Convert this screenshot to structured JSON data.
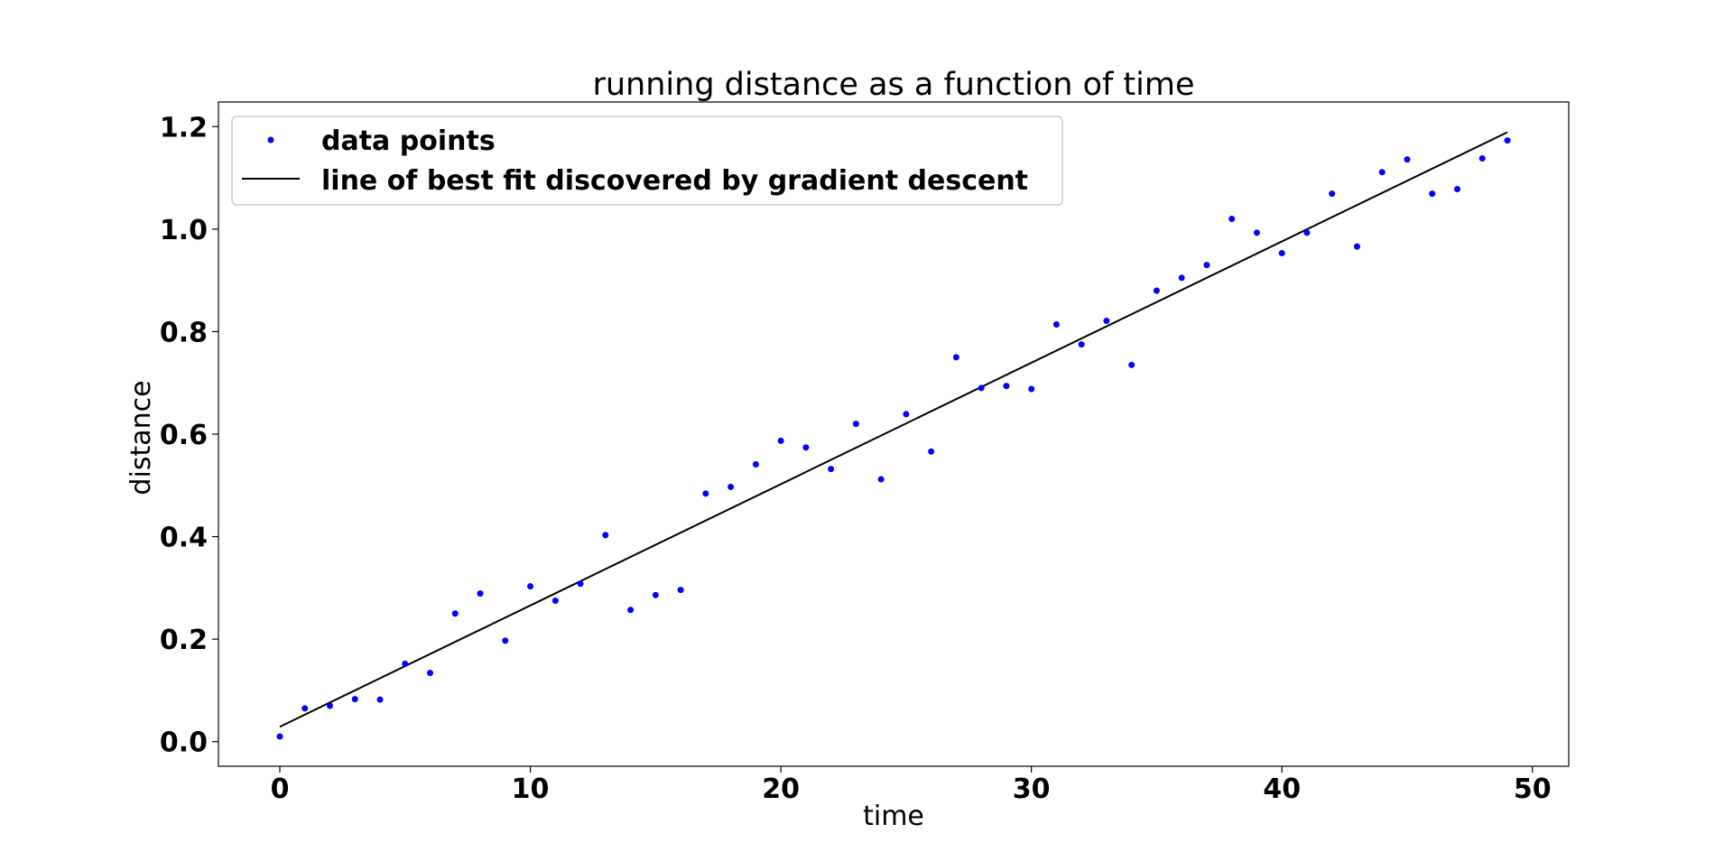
{
  "chart_data": {
    "type": "scatter",
    "title": "running distance as a function of time",
    "xlabel": "time",
    "ylabel": "distance",
    "xlim": [
      -2.45,
      51.45
    ],
    "ylim": [
      -0.048,
      1.248
    ],
    "xticks": [
      0,
      10,
      20,
      30,
      40,
      50
    ],
    "xtick_labels": [
      "0",
      "10",
      "20",
      "30",
      "40",
      "50"
    ],
    "yticks": [
      0.0,
      0.2,
      0.4,
      0.6,
      0.8,
      1.0,
      1.2
    ],
    "ytick_labels": [
      "0.0",
      "0.2",
      "0.4",
      "0.6",
      "0.8",
      "1.0",
      "1.2"
    ],
    "grid": false,
    "legend_position": "top-left",
    "series": [
      {
        "name": "data points",
        "kind": "scatter",
        "color": "#0000ff",
        "x": [
          0,
          1,
          2,
          3,
          4,
          5,
          6,
          7,
          8,
          9,
          10,
          11,
          12,
          13,
          14,
          15,
          16,
          17,
          18,
          19,
          20,
          21,
          22,
          23,
          24,
          25,
          26,
          27,
          28,
          29,
          30,
          31,
          32,
          33,
          34,
          35,
          36,
          37,
          38,
          39,
          40,
          41,
          42,
          43,
          44,
          45,
          46,
          47,
          48,
          49
        ],
        "y": [
          0.01,
          0.065,
          0.07,
          0.083,
          0.082,
          0.152,
          0.134,
          0.25,
          0.289,
          0.197,
          0.303,
          0.275,
          0.308,
          0.403,
          0.257,
          0.286,
          0.296,
          0.484,
          0.497,
          0.541,
          0.587,
          0.574,
          0.532,
          0.62,
          0.512,
          0.639,
          0.566,
          0.75,
          0.69,
          0.694,
          0.688,
          0.814,
          0.775,
          0.821,
          0.735,
          0.88,
          0.905,
          0.93,
          1.02,
          0.993,
          0.953,
          0.993,
          1.069,
          0.966,
          1.111,
          1.136,
          1.069,
          1.078,
          1.138,
          1.173
        ]
      },
      {
        "name": "line of best fit discovered by gradient descent",
        "kind": "line",
        "color": "#000000",
        "x": [
          0,
          49
        ],
        "y": [
          0.029,
          1.189
        ]
      }
    ]
  }
}
